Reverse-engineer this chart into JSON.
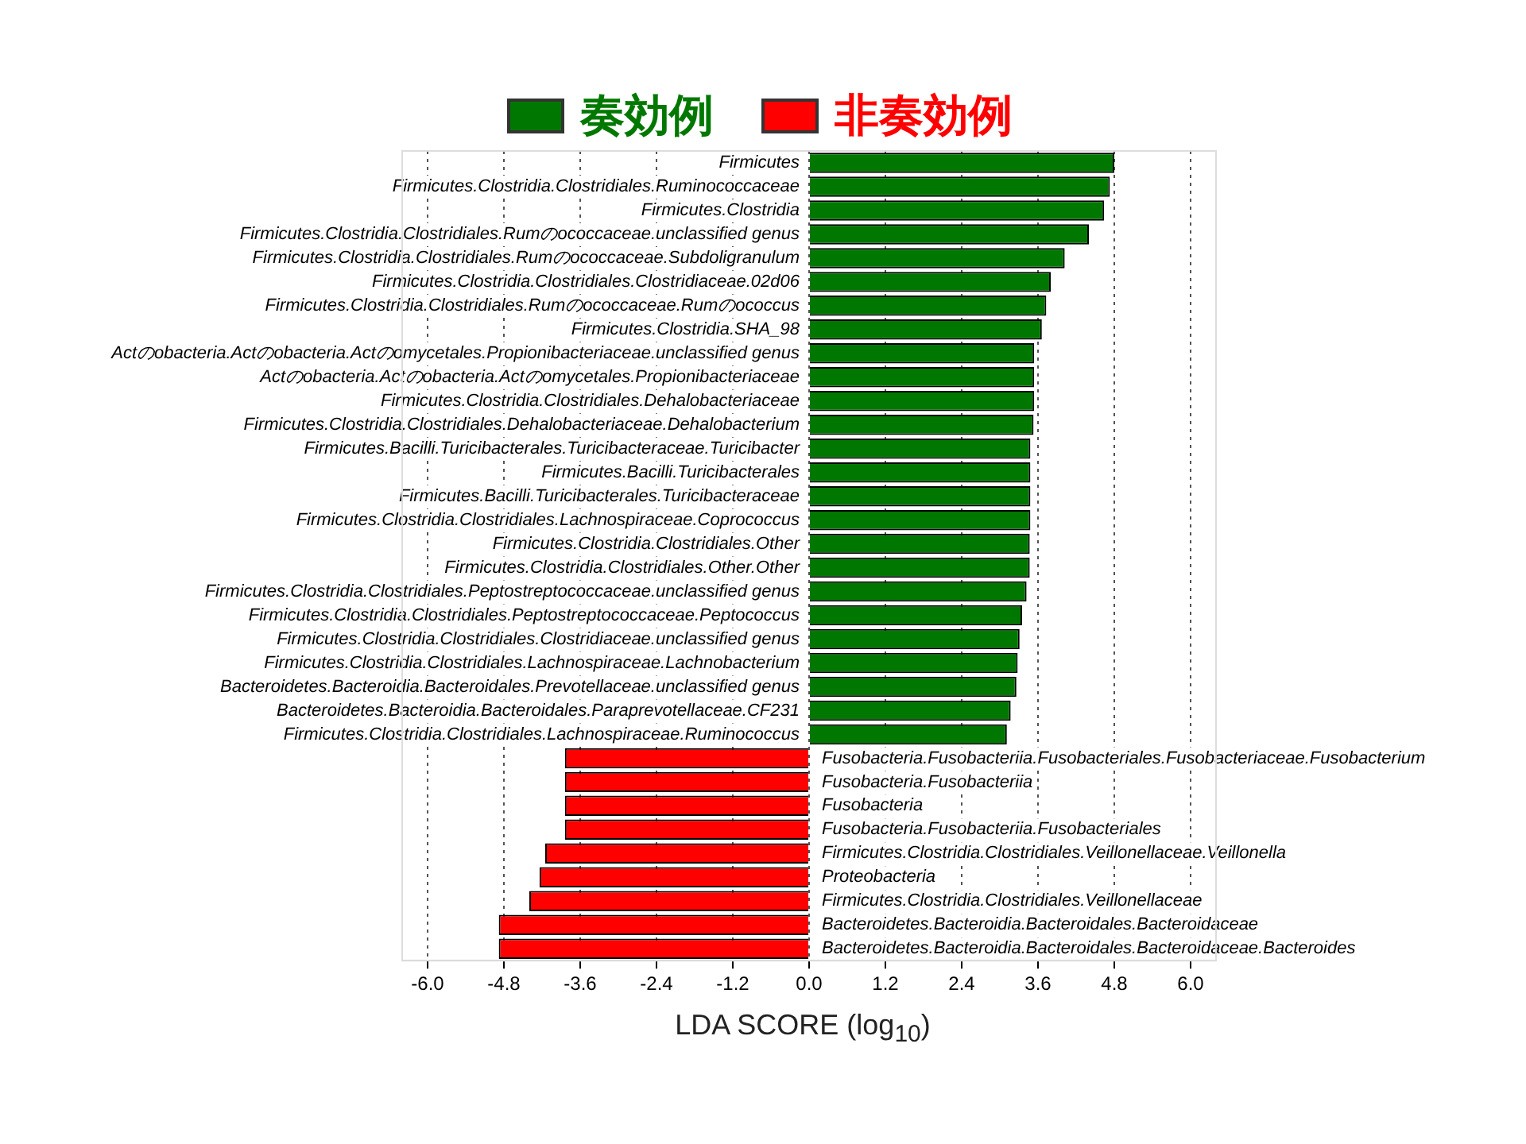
{
  "chart_data": {
    "type": "bar",
    "orientation": "horizontal",
    "xlabel": "LDA SCORE (log$_{10}$)",
    "categories": [
      "Firmicutes",
      "Firmicutes.Clostridia.Clostridiales.Ruminococcaceae",
      "Firmicutes.Clostridia",
      "Firmicutes.Clostridia.Clostridiales.Rumのococcaceae.unclassified genus",
      "Firmicutes.Clostridia.Clostridiales.Rumのococcaceae.Subdoligranulum",
      "Firmicutes.Clostridia.Clostridiales.Clostridiaceae.02d06",
      "Firmicutes.Clostridia.Clostridiales.Rumのococcaceae.Rumのococcus",
      "Firmicutes.Clostridia.SHA_98",
      "Actのobacteria.Actのobacteria.Actのomycetales.Propionibacteriaceae.unclassified genus",
      "Actのobacteria.Actのobacteria.Actのomycetales.Propionibacteriaceae",
      "Firmicutes.Clostridia.Clostridiales.Dehalobacteriaceae",
      "Firmicutes.Clostridia.Clostridiales.Dehalobacteriaceae.Dehalobacterium",
      "Firmicutes.Bacilli.Turicibacterales.Turicibacteraceae.Turicibacter",
      "Firmicutes.Bacilli.Turicibacterales",
      "Firmicutes.Bacilli.Turicibacterales.Turicibacteraceae",
      "Firmicutes.Clostridia.Clostridiales.Lachnospiraceae.Coprococcus",
      "Firmicutes.Clostridia.Clostridiales.Other",
      "Firmicutes.Clostridia.Clostridiales.Other.Other",
      "Firmicutes.Clostridia.Clostridiales.Peptostreptococcaceae.unclassified genus",
      "Firmicutes.Clostridia.Clostridiales.Peptostreptococcaceae.Peptococcus",
      "Firmicutes.Clostridia.Clostridiales.Clostridiaceae.unclassified genus",
      "Firmicutes.Clostridia.Clostridiales.Lachnospiraceae.Lachnobacterium",
      "Bacteroidetes.Bacteroidia.Bacteroidales.Prevotellaceae.unclassified genus",
      "Bacteroidetes.Bacteroidia.Bacteroidales.Paraprevotellaceae.CF231",
      "Firmicutes.Clostridia.Clostridiales.Lachnospiraceae.Ruminococcus",
      "Fusobacteria.Fusobacteriia.Fusobacteriales.Fusobacteriaceae.Fusobacterium",
      "Fusobacteria.Fusobacteriia",
      "Fusobacteria",
      "Fusobacteria.Fusobacteriia.Fusobacteriales",
      "Firmicutes.Clostridia.Clostridiales.Veillonellaceae.Veillonella",
      "Proteobacteria",
      "Firmicutes.Clostridia.Clostridiales.Veillonellaceae",
      "Bacteroidetes.Bacteroidia.Bacteroidales.Bacteroidaceae",
      "Bacteroidetes.Bacteroidia.Bacteroidales.Bacteroidaceae.Bacteroides"
    ],
    "series": [
      {
        "name": "奏効例",
        "color": "#007800",
        "values": [
          4.8,
          4.73,
          4.64,
          4.4,
          4.02,
          3.8,
          3.73,
          3.66,
          3.54,
          3.54,
          3.54,
          3.53,
          3.48,
          3.48,
          3.48,
          3.48,
          3.47,
          3.47,
          3.42,
          3.35,
          3.31,
          3.28,
          3.26,
          3.17,
          3.11,
          null,
          null,
          null,
          null,
          null,
          null,
          null,
          null,
          null
        ]
      },
      {
        "name": "非奏効例",
        "color": "#ff0000",
        "values": [
          null,
          null,
          null,
          null,
          null,
          null,
          null,
          null,
          null,
          null,
          null,
          null,
          null,
          null,
          null,
          null,
          null,
          null,
          null,
          null,
          null,
          null,
          null,
          null,
          null,
          -3.84,
          -3.84,
          -3.84,
          -3.84,
          -4.15,
          -4.24,
          -4.4,
          -4.88,
          -4.88
        ]
      }
    ],
    "xlim": [
      -6.4,
      6.4
    ],
    "xticks": [
      {
        "value": -6,
        "label": "-6.0"
      },
      {
        "value": -4.8,
        "label": "-4.8"
      },
      {
        "value": -3.6,
        "label": "-3.6"
      },
      {
        "value": -2.4,
        "label": "-2.4"
      },
      {
        "value": -1.2,
        "label": "-1.2"
      },
      {
        "value": 0,
        "label": "0.0"
      },
      {
        "value": 1.2,
        "label": "1.2"
      },
      {
        "value": 2.4,
        "label": "2.4"
      },
      {
        "value": 3.6,
        "label": "3.6"
      },
      {
        "value": 4.8,
        "label": "4.8"
      },
      {
        "value": 6,
        "label": "6.0"
      }
    ],
    "grid": "x",
    "line_style": "dotted",
    "legend": "top"
  }
}
